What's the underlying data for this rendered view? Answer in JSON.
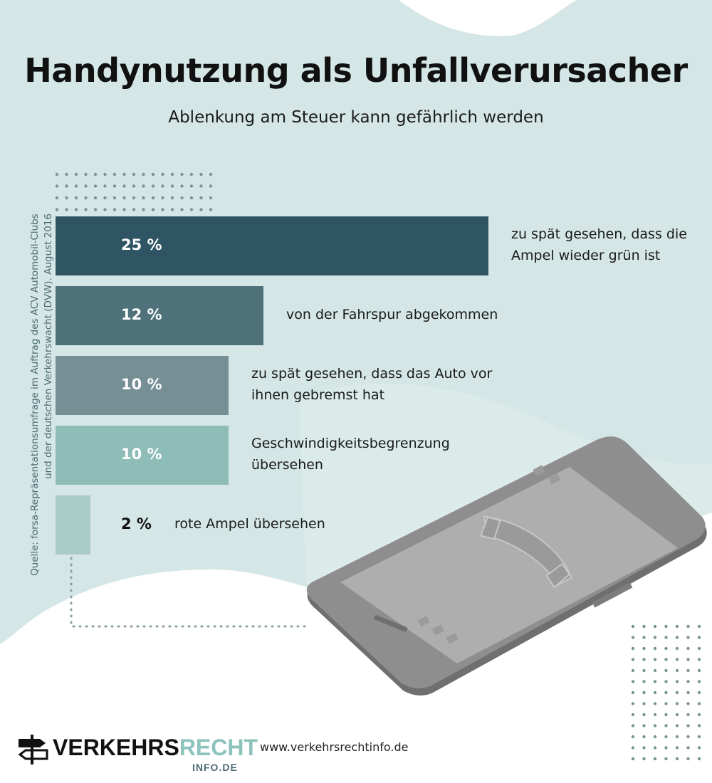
{
  "header": {
    "title": "Handynutzung als Unfallverursacher",
    "subtitle": "Ablenkung am Steuer kann gefährlich werden"
  },
  "source": {
    "line1": "Quelle: forsa-Repräsentationsumfrage im Auftrag des ACV Automobil-Clubs",
    "line2": "und der deutschen Verkehrswacht (DVW). August 2016"
  },
  "chart_data": {
    "type": "bar",
    "orientation": "horizontal",
    "unit": "%",
    "categories": [
      "zu spät gesehen, dass die Ampel wieder grün ist",
      "von der Fahrspur abgekommen",
      "zu spät gesehen, dass das Auto vor ihnen gebremst hat",
      "Geschwindigkeitsbegrenzung übersehen",
      "rote Ampel übersehen"
    ],
    "values": [
      25,
      12,
      10,
      10,
      2
    ],
    "value_labels": [
      "25 %",
      "12 %",
      "10 %",
      "10 %",
      "2 %"
    ],
    "label_lines": [
      [
        "zu spät gesehen, dass die",
        "Ampel wieder grün ist"
      ],
      [
        "von der Fahrspur abgekommen"
      ],
      [
        "zu spät gesehen, dass das Auto vor",
        "ihnen gebremst hat"
      ],
      [
        "Geschwindigkeitsbegrenzung",
        "übersehen"
      ],
      [
        "rote Ampel übersehen"
      ]
    ],
    "colors": [
      "#2f5565",
      "#4e717a",
      "#758f95",
      "#8dbdb6",
      "#a8cbc8"
    ],
    "value_text_colors": [
      "#ffffff",
      "#ffffff",
      "#ffffff",
      "#ffffff",
      "#111111"
    ],
    "xlim": [
      0,
      25
    ],
    "grid": false,
    "legend": "none"
  },
  "footer": {
    "logo_dark": "VERKEHRS",
    "logo_accent": "RECHT",
    "logo_sub": "INFO.DE",
    "url": "www.verkehrsrechtinfo.de"
  },
  "colors": {
    "background_tint": "#d4e6e5",
    "phone_body": "#8a8a8a",
    "accent": "#8cc3bd",
    "dots": "#7a9498"
  },
  "icons": {
    "logo": "signpost-icon",
    "phone_screen": "phone-handset-icon"
  }
}
